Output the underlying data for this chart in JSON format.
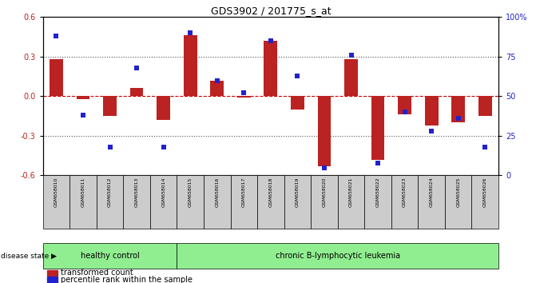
{
  "title": "GDS3902 / 201775_s_at",
  "samples": [
    "GSM658010",
    "GSM658011",
    "GSM658012",
    "GSM658013",
    "GSM658014",
    "GSM658015",
    "GSM658016",
    "GSM658017",
    "GSM658018",
    "GSM658019",
    "GSM658020",
    "GSM658021",
    "GSM658022",
    "GSM658023",
    "GSM658024",
    "GSM658025",
    "GSM658026"
  ],
  "red_bars": [
    0.28,
    -0.02,
    -0.15,
    0.06,
    -0.18,
    0.46,
    0.12,
    -0.01,
    0.42,
    -0.1,
    -0.53,
    0.28,
    -0.48,
    -0.14,
    -0.22,
    -0.2,
    -0.15
  ],
  "blue_squares": [
    88,
    38,
    18,
    68,
    18,
    90,
    60,
    52,
    85,
    63,
    5,
    76,
    8,
    40,
    28,
    36,
    18
  ],
  "healthy_count": 5,
  "leukemia_count": 12,
  "group1_label": "healthy control",
  "group2_label": "chronic B-lymphocytic leukemia",
  "disease_state_label": "disease state",
  "legend1": "transformed count",
  "legend2": "percentile rank within the sample",
  "ylim_left": [
    -0.6,
    0.6
  ],
  "ylim_right": [
    0,
    100
  ],
  "yticks_left": [
    -0.6,
    -0.3,
    0.0,
    0.3,
    0.6
  ],
  "yticks_right": [
    0,
    25,
    50,
    75,
    100
  ],
  "red_color": "#BB2222",
  "blue_color": "#2222CC",
  "bar_width": 0.5,
  "background_color": "#FFFFFF",
  "healthy_bg": "#90EE90",
  "leukemia_bg": "#90EE90",
  "tick_label_area_bg": "#CCCCCC",
  "dotted_line_color": "#555555",
  "zero_line_color": "#CC0000"
}
